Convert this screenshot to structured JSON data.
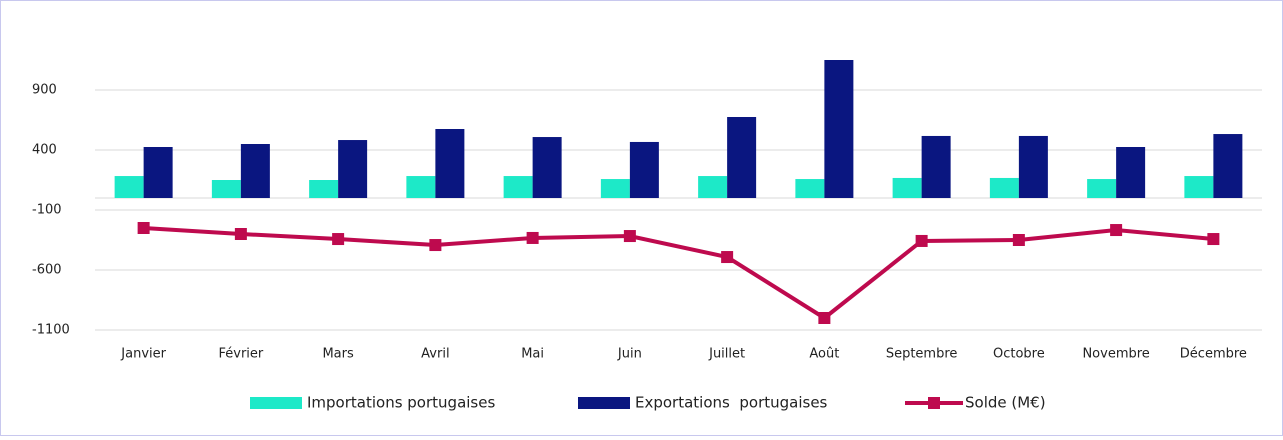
{
  "chart_data": {
    "type": "bar_line",
    "categories": [
      "Janvier",
      "Février",
      "Mars",
      "Avril",
      "Mai",
      "Juin",
      "Juillet",
      "Août",
      "Septembre",
      "Octobre",
      "Novembre",
      "Décembre"
    ],
    "series": [
      {
        "name": "Importations portugaises",
        "type": "bar",
        "color": "#1de9c8",
        "values": [
          183,
          150,
          150,
          183,
          183,
          158,
          183,
          158,
          167,
          167,
          158,
          183
        ]
      },
      {
        "name": "Exportations  portugaises",
        "type": "bar",
        "color": "#0a1680",
        "values": [
          425,
          450,
          483,
          575,
          508,
          467,
          675,
          1150,
          517,
          517,
          425,
          533
        ]
      },
      {
        "name": "Solde (M€)",
        "type": "line",
        "color": "#be0a4e",
        "values": [
          -250,
          -300,
          -342,
          -392,
          -333,
          -317,
          -492,
          -1000,
          -358,
          -350,
          -267,
          -342
        ]
      }
    ],
    "ylim": [
      -1100,
      1400
    ],
    "yticks": [
      -1100,
      -600,
      -100,
      400,
      900
    ],
    "grid": true,
    "legend": "bottom"
  }
}
